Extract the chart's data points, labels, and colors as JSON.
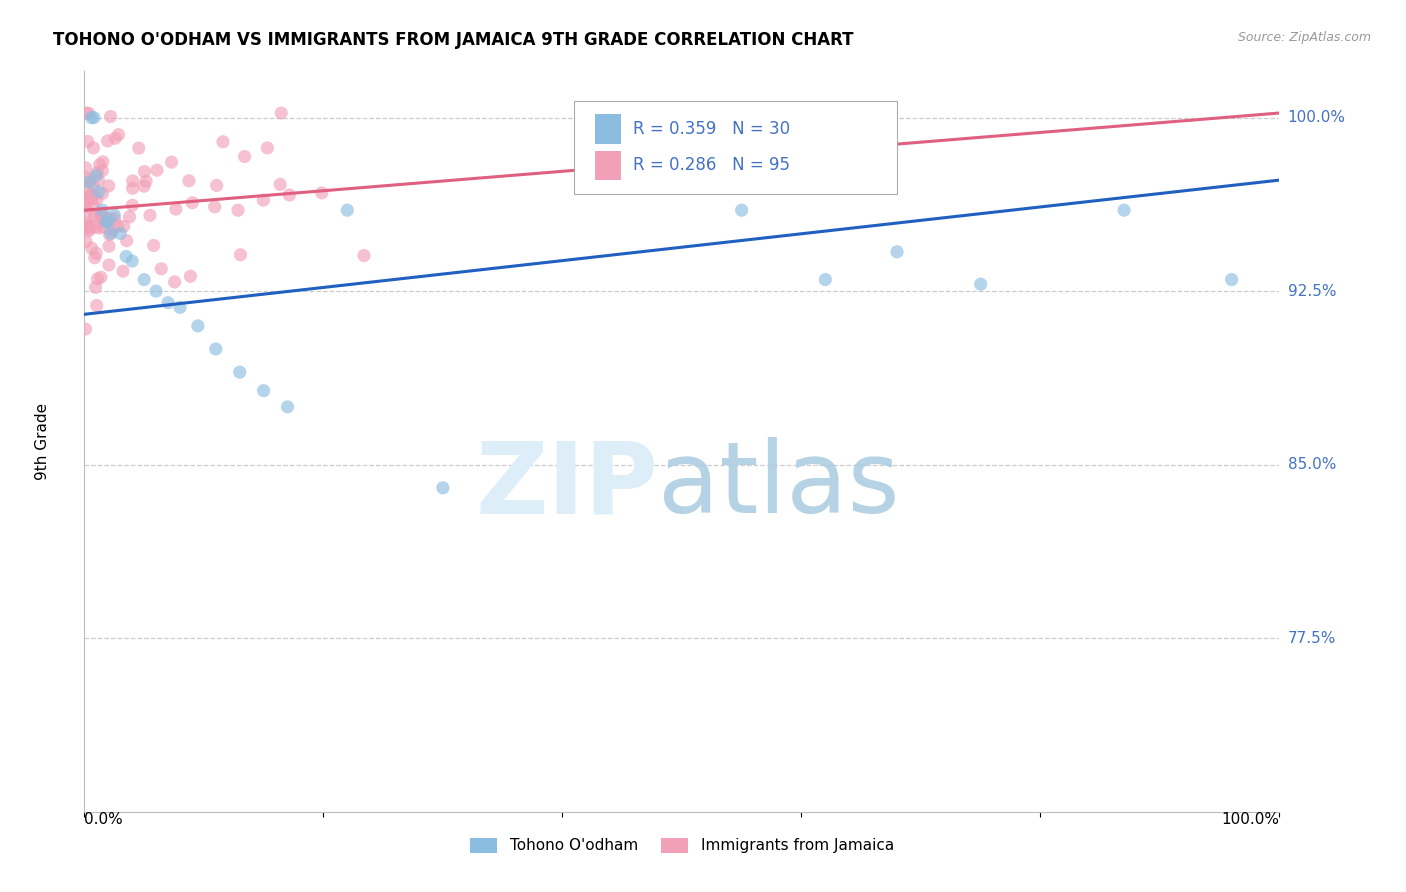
{
  "title": "TOHONO O'ODHAM VS IMMIGRANTS FROM JAMAICA 9TH GRADE CORRELATION CHART",
  "source": "Source: ZipAtlas.com",
  "ylabel": "9th Grade",
  "ytick_labels": [
    "77.5%",
    "85.0%",
    "92.5%",
    "100.0%"
  ],
  "ytick_values": [
    0.775,
    0.85,
    0.925,
    1.0
  ],
  "xmin": 0.0,
  "xmax": 1.0,
  "ymin": 0.7,
  "ymax": 1.02,
  "legend_label1": "Tohono O'odham",
  "legend_label2": "Immigrants from Jamaica",
  "r1": 0.359,
  "n1": 30,
  "r2": 0.286,
  "n2": 95,
  "color_blue": "#8bbde0",
  "color_pink": "#f2a0b8",
  "color_blue_line": "#2060c0",
  "color_pink_line": "#e06080",
  "title_fontsize": 12,
  "source_fontsize": 9,
  "scatter_alpha": 0.65,
  "scatter_size": 90,
  "blue_intercept": 0.915,
  "blue_slope": 0.058,
  "pink_intercept": 0.96,
  "pink_slope": 0.042
}
